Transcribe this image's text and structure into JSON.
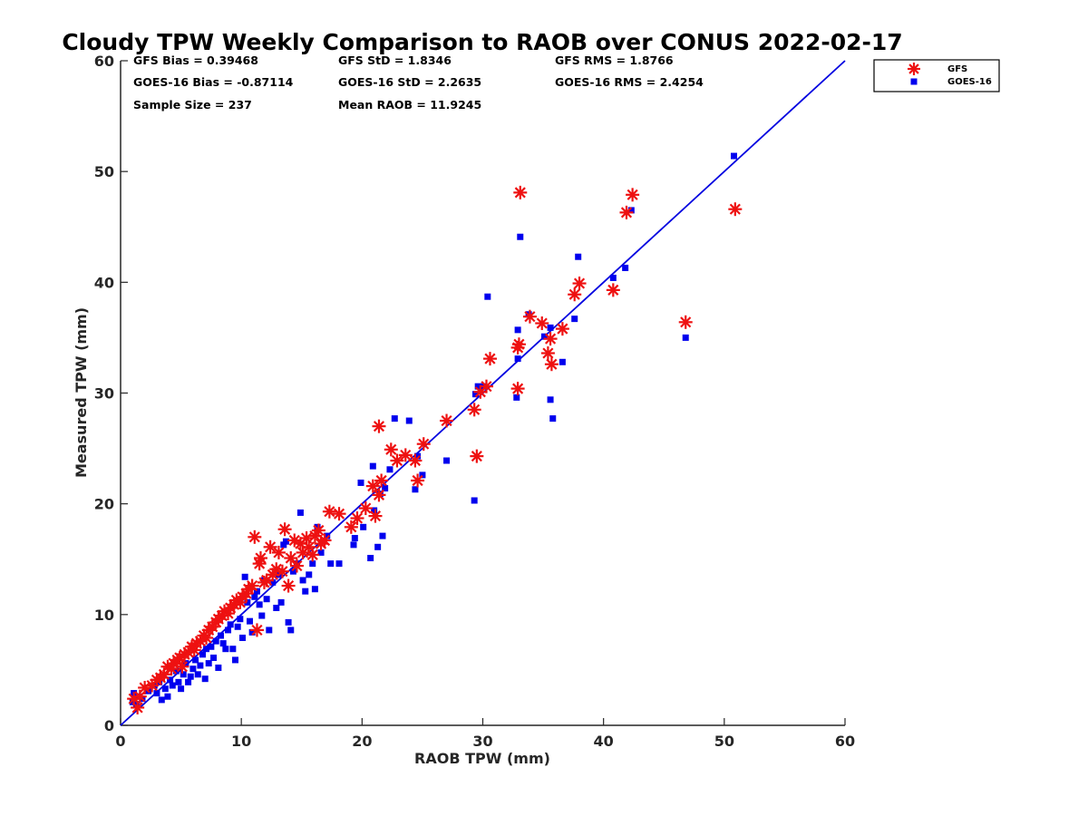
{
  "chart_data": {
    "type": "scatter",
    "title": "Cloudy TPW Weekly Comparison to RAOB over CONUS 2022-02-17",
    "xlabel": "RAOB TPW (mm)",
    "ylabel": "Measured TPW (mm)",
    "xlim": [
      0,
      60
    ],
    "ylim": [
      0,
      60
    ],
    "xticks": [
      "0",
      "10",
      "20",
      "30",
      "40",
      "50",
      "60"
    ],
    "yticks": [
      "0",
      "10",
      "20",
      "30",
      "40",
      "50",
      "60"
    ],
    "grid": false,
    "legend_position": "top-right outside",
    "stats": [
      "GFS Bias = 0.39468",
      "GFS StD = 1.8346",
      "GFS RMS = 1.8766",
      "GOES-16 Bias = -0.87114",
      "GOES-16 StD = 2.2635",
      "GOES-16 RMS = 2.4254",
      "Sample Size = 237",
      "Mean RAOB = 11.9245"
    ],
    "reference_line": {
      "x": [
        0,
        60
      ],
      "y": [
        0,
        60
      ],
      "color": "#0000e0"
    },
    "series": [
      {
        "name": "GFS",
        "marker": "asterisk",
        "color": "#ee1111",
        "points": [
          [
            1.1,
            2.4
          ],
          [
            1.4,
            1.6
          ],
          [
            1.6,
            2.6
          ],
          [
            2.0,
            3.4
          ],
          [
            2.6,
            3.6
          ],
          [
            3.0,
            4.1
          ],
          [
            3.3,
            4.3
          ],
          [
            3.6,
            4.6
          ],
          [
            3.9,
            5.3
          ],
          [
            4.2,
            5.1
          ],
          [
            4.4,
            5.6
          ],
          [
            4.7,
            5.9
          ],
          [
            4.9,
            6.1
          ],
          [
            5.1,
            5.3
          ],
          [
            5.3,
            6.4
          ],
          [
            5.6,
            6.6
          ],
          [
            5.9,
            7.1
          ],
          [
            6.1,
            6.8
          ],
          [
            6.3,
            7.4
          ],
          [
            6.6,
            7.6
          ],
          [
            6.9,
            8.1
          ],
          [
            7.1,
            7.9
          ],
          [
            7.3,
            8.6
          ],
          [
            7.6,
            8.9
          ],
          [
            7.9,
            9.3
          ],
          [
            8.1,
            9.6
          ],
          [
            8.4,
            9.9
          ],
          [
            8.6,
            10.3
          ],
          [
            8.9,
            10.1
          ],
          [
            9.1,
            10.6
          ],
          [
            9.4,
            10.9
          ],
          [
            9.6,
            11.3
          ],
          [
            9.9,
            11.1
          ],
          [
            10.1,
            11.6
          ],
          [
            10.4,
            11.9
          ],
          [
            10.6,
            12.3
          ],
          [
            10.9,
            12.6
          ],
          [
            11.1,
            17.0
          ],
          [
            11.3,
            8.6
          ],
          [
            11.5,
            14.6
          ],
          [
            11.6,
            15.1
          ],
          [
            11.9,
            12.9
          ],
          [
            12.1,
            13.1
          ],
          [
            12.4,
            16.1
          ],
          [
            12.6,
            13.6
          ],
          [
            12.9,
            14.1
          ],
          [
            13.1,
            15.6
          ],
          [
            13.4,
            13.9
          ],
          [
            13.6,
            17.7
          ],
          [
            13.9,
            12.6
          ],
          [
            14.1,
            15.1
          ],
          [
            14.4,
            16.7
          ],
          [
            14.6,
            14.4
          ],
          [
            14.9,
            16.4
          ],
          [
            15.1,
            15.6
          ],
          [
            15.4,
            16.9
          ],
          [
            15.6,
            16.1
          ],
          [
            15.9,
            15.4
          ],
          [
            16.1,
            17.1
          ],
          [
            16.4,
            17.6
          ],
          [
            16.6,
            16.4
          ],
          [
            16.9,
            16.7
          ],
          [
            17.3,
            19.3
          ],
          [
            18.1,
            19.1
          ],
          [
            19.1,
            17.9
          ],
          [
            19.6,
            18.7
          ],
          [
            20.3,
            19.6
          ],
          [
            20.9,
            21.6
          ],
          [
            21.1,
            18.9
          ],
          [
            21.4,
            20.8
          ],
          [
            21.6,
            22.1
          ],
          [
            21.4,
            27.0
          ],
          [
            22.4,
            24.9
          ],
          [
            22.9,
            23.9
          ],
          [
            23.6,
            24.4
          ],
          [
            24.4,
            23.9
          ],
          [
            24.6,
            22.1
          ],
          [
            25.1,
            25.4
          ],
          [
            27.0,
            27.5
          ],
          [
            29.3,
            28.5
          ],
          [
            29.5,
            24.3
          ],
          [
            29.8,
            30.1
          ],
          [
            30.3,
            30.6
          ],
          [
            30.6,
            33.1
          ],
          [
            32.9,
            30.4
          ],
          [
            32.9,
            34.1
          ],
          [
            33.0,
            34.4
          ],
          [
            33.1,
            48.1
          ],
          [
            33.9,
            36.9
          ],
          [
            34.9,
            36.3
          ],
          [
            35.4,
            33.6
          ],
          [
            35.6,
            34.9
          ],
          [
            35.7,
            32.6
          ],
          [
            36.6,
            35.8
          ],
          [
            37.6,
            38.9
          ],
          [
            38.0,
            39.9
          ],
          [
            40.8,
            39.3
          ],
          [
            41.9,
            46.3
          ],
          [
            42.4,
            47.9
          ],
          [
            46.8,
            36.4
          ],
          [
            50.9,
            46.6
          ]
        ]
      },
      {
        "name": "GOES-16",
        "marker": "square",
        "color": "#0000ee",
        "points": [
          [
            1.0,
            2.1
          ],
          [
            1.1,
            2.9
          ],
          [
            1.3,
            1.9
          ],
          [
            1.5,
            2.6
          ],
          [
            1.8,
            2.4
          ],
          [
            2.3,
            3.1
          ],
          [
            2.8,
            3.6
          ],
          [
            3.0,
            2.9
          ],
          [
            3.2,
            3.9
          ],
          [
            3.4,
            2.3
          ],
          [
            3.7,
            3.3
          ],
          [
            3.9,
            2.6
          ],
          [
            4.1,
            4.1
          ],
          [
            4.3,
            3.6
          ],
          [
            4.6,
            4.9
          ],
          [
            4.8,
            3.9
          ],
          [
            5.0,
            3.3
          ],
          [
            5.2,
            4.6
          ],
          [
            5.4,
            5.6
          ],
          [
            5.6,
            3.9
          ],
          [
            5.8,
            4.4
          ],
          [
            6.0,
            5.1
          ],
          [
            6.2,
            5.9
          ],
          [
            6.4,
            4.6
          ],
          [
            6.6,
            5.4
          ],
          [
            6.8,
            6.4
          ],
          [
            7.0,
            4.2
          ],
          [
            7.1,
            6.9
          ],
          [
            7.3,
            5.6
          ],
          [
            7.5,
            7.1
          ],
          [
            7.7,
            6.1
          ],
          [
            7.9,
            7.6
          ],
          [
            8.1,
            5.2
          ],
          [
            8.3,
            8.1
          ],
          [
            8.5,
            7.4
          ],
          [
            8.7,
            6.9
          ],
          [
            8.9,
            8.6
          ],
          [
            9.1,
            9.1
          ],
          [
            9.3,
            6.9
          ],
          [
            9.5,
            5.9
          ],
          [
            9.7,
            8.9
          ],
          [
            9.9,
            9.6
          ],
          [
            10.1,
            7.9
          ],
          [
            10.3,
            13.4
          ],
          [
            10.5,
            11.1
          ],
          [
            10.7,
            9.4
          ],
          [
            10.9,
            8.4
          ],
          [
            11.1,
            11.6
          ],
          [
            11.3,
            12.1
          ],
          [
            11.5,
            10.9
          ],
          [
            11.7,
            9.9
          ],
          [
            11.9,
            13.1
          ],
          [
            12.1,
            11.4
          ],
          [
            12.3,
            8.6
          ],
          [
            12.6,
            12.9
          ],
          [
            12.9,
            10.6
          ],
          [
            13.1,
            13.6
          ],
          [
            13.3,
            11.1
          ],
          [
            13.5,
            16.3
          ],
          [
            13.7,
            16.6
          ],
          [
            13.9,
            9.3
          ],
          [
            14.1,
            8.6
          ],
          [
            14.3,
            13.9
          ],
          [
            14.6,
            14.6
          ],
          [
            14.9,
            19.2
          ],
          [
            15.1,
            13.1
          ],
          [
            15.3,
            12.1
          ],
          [
            15.6,
            13.6
          ],
          [
            15.9,
            14.6
          ],
          [
            16.1,
            12.3
          ],
          [
            16.3,
            17.9
          ],
          [
            16.6,
            15.6
          ],
          [
            17.1,
            17.1
          ],
          [
            17.4,
            14.6
          ],
          [
            18.1,
            14.6
          ],
          [
            19.3,
            16.3
          ],
          [
            19.4,
            16.9
          ],
          [
            19.9,
            21.9
          ],
          [
            20.1,
            17.9
          ],
          [
            20.7,
            15.1
          ],
          [
            20.9,
            23.4
          ],
          [
            21.0,
            19.4
          ],
          [
            21.3,
            16.1
          ],
          [
            21.5,
            20.9
          ],
          [
            21.7,
            17.1
          ],
          [
            21.9,
            21.4
          ],
          [
            22.3,
            23.1
          ],
          [
            22.7,
            27.7
          ],
          [
            23.9,
            27.5
          ],
          [
            24.4,
            21.3
          ],
          [
            24.6,
            24.3
          ],
          [
            25.0,
            22.6
          ],
          [
            27.0,
            23.9
          ],
          [
            29.3,
            20.3
          ],
          [
            29.4,
            29.9
          ],
          [
            29.6,
            30.6
          ],
          [
            30.1,
            30.6
          ],
          [
            30.4,
            38.7
          ],
          [
            32.8,
            29.6
          ],
          [
            32.9,
            33.1
          ],
          [
            32.9,
            35.7
          ],
          [
            33.1,
            44.1
          ],
          [
            33.8,
            37.1
          ],
          [
            35.1,
            35.1
          ],
          [
            35.6,
            35.9
          ],
          [
            35.6,
            29.4
          ],
          [
            35.8,
            27.7
          ],
          [
            36.6,
            32.8
          ],
          [
            37.6,
            36.7
          ],
          [
            37.9,
            42.3
          ],
          [
            40.8,
            40.4
          ],
          [
            41.8,
            41.3
          ],
          [
            42.3,
            46.5
          ],
          [
            46.8,
            35.0
          ],
          [
            50.8,
            51.4
          ]
        ]
      }
    ]
  }
}
